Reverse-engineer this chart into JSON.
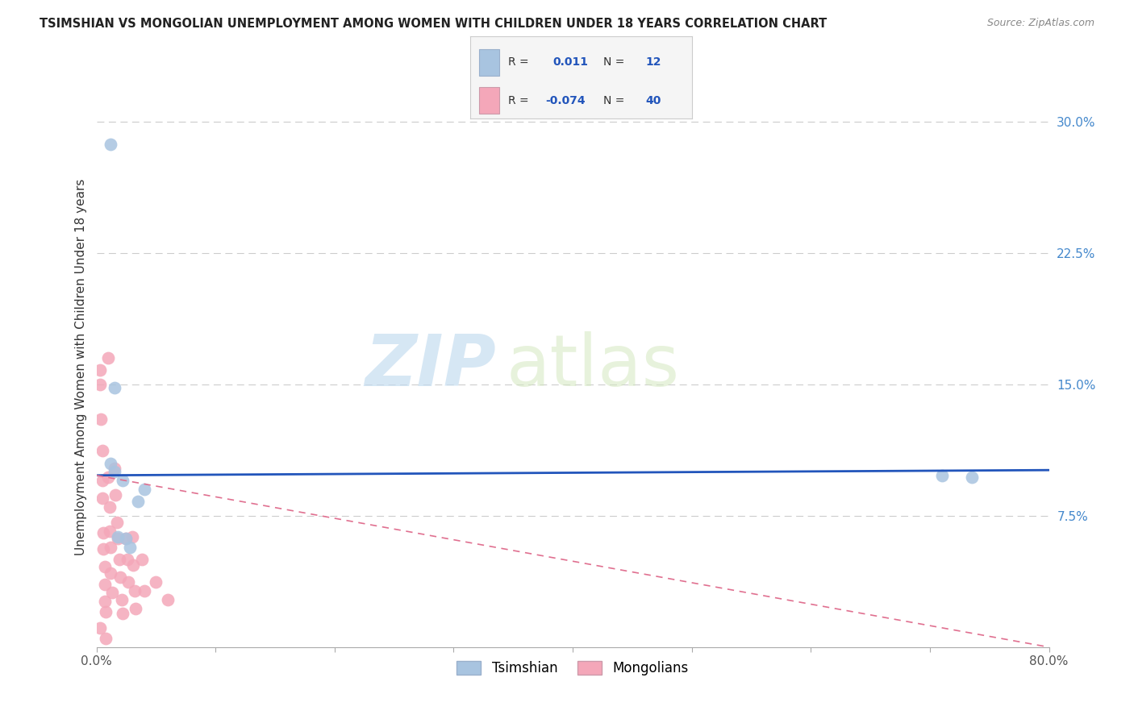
{
  "title": "TSIMSHIAN VS MONGOLIAN UNEMPLOYMENT AMONG WOMEN WITH CHILDREN UNDER 18 YEARS CORRELATION CHART",
  "source": "Source: ZipAtlas.com",
  "ylabel": "Unemployment Among Women with Children Under 18 years",
  "xlim": [
    0.0,
    0.8
  ],
  "ylim": [
    0.0,
    0.32
  ],
  "xticks": [
    0.0,
    0.1,
    0.2,
    0.3,
    0.4,
    0.5,
    0.6,
    0.7,
    0.8
  ],
  "xticklabels": [
    "0.0%",
    "",
    "",
    "",
    "",
    "",
    "",
    "",
    "80.0%"
  ],
  "yticks": [
    0.0,
    0.075,
    0.15,
    0.225,
    0.3
  ],
  "yticklabels": [
    "",
    "7.5%",
    "15.0%",
    "22.5%",
    "30.0%"
  ],
  "grid_yticks": [
    0.075,
    0.15,
    0.225,
    0.3
  ],
  "tsimshian_color": "#a8c4e0",
  "mongolian_color": "#f4a7b9",
  "tsimshian_R": "0.011",
  "tsimshian_N": "12",
  "mongolian_R": "-0.074",
  "mongolian_N": "40",
  "tsimshian_line_color": "#2255bb",
  "mongolian_line_color": "#e07090",
  "watermark_zip": "ZIP",
  "watermark_atlas": "atlas",
  "tsimshian_x": [
    0.012,
    0.015,
    0.015,
    0.022,
    0.025,
    0.035,
    0.04,
    0.71,
    0.735,
    0.012,
    0.018,
    0.028
  ],
  "tsimshian_y": [
    0.287,
    0.148,
    0.1,
    0.095,
    0.062,
    0.083,
    0.09,
    0.098,
    0.097,
    0.105,
    0.063,
    0.057
  ],
  "mongolian_x": [
    0.003,
    0.003,
    0.004,
    0.005,
    0.005,
    0.005,
    0.006,
    0.006,
    0.007,
    0.007,
    0.007,
    0.008,
    0.008,
    0.01,
    0.01,
    0.011,
    0.011,
    0.012,
    0.012,
    0.013,
    0.015,
    0.016,
    0.017,
    0.018,
    0.019,
    0.02,
    0.021,
    0.022,
    0.025,
    0.026,
    0.027,
    0.03,
    0.031,
    0.032,
    0.033,
    0.038,
    0.04,
    0.05,
    0.06,
    0.003
  ],
  "mongolian_y": [
    0.158,
    0.15,
    0.13,
    0.112,
    0.095,
    0.085,
    0.065,
    0.056,
    0.046,
    0.036,
    0.026,
    0.02,
    0.005,
    0.165,
    0.097,
    0.08,
    0.066,
    0.057,
    0.042,
    0.031,
    0.102,
    0.087,
    0.071,
    0.062,
    0.05,
    0.04,
    0.027,
    0.019,
    0.062,
    0.05,
    0.037,
    0.063,
    0.047,
    0.032,
    0.022,
    0.05,
    0.032,
    0.037,
    0.027,
    0.011
  ],
  "tsimshian_trend": [
    0.098,
    0.101
  ],
  "mongolian_trend_start": 0.098,
  "mongolian_trend_end": 0.0
}
